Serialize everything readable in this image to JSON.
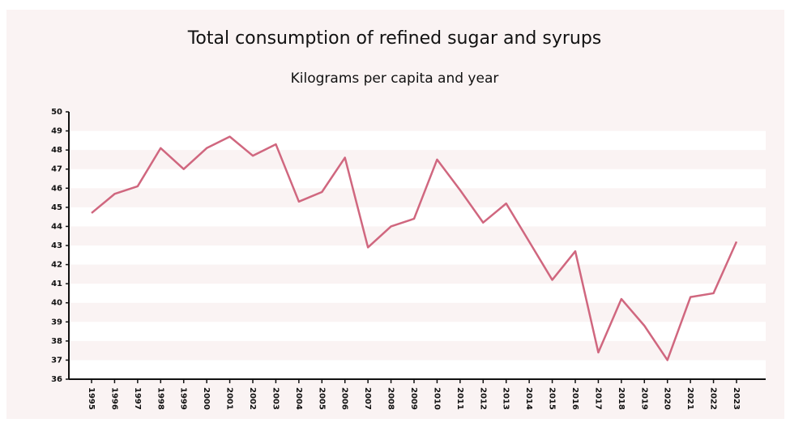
{
  "chart_data": {
    "type": "line",
    "title": "Total consumption of refined sugar and syrups",
    "subtitle": "Kilograms per capita and year",
    "categories": [
      "1995",
      "1996",
      "1997",
      "1998",
      "1999",
      "2000",
      "2001",
      "2002",
      "2003",
      "2004",
      "2005",
      "2006",
      "2007",
      "2008",
      "2009",
      "2010",
      "2011",
      "2012",
      "2013",
      "2014",
      "2015",
      "2016",
      "2017",
      "2018",
      "2019",
      "2020",
      "2021",
      "2022",
      "2023"
    ],
    "series": [
      {
        "color": "#d0677f",
        "values": [
          44.7,
          45.7,
          46.1,
          48.1,
          47.0,
          48.1,
          48.7,
          47.7,
          48.3,
          45.3,
          45.8,
          47.6,
          42.9,
          44.0,
          44.4,
          47.5,
          45.9,
          44.2,
          45.2,
          43.2,
          41.2,
          42.7,
          37.4,
          40.2,
          38.8,
          37.0,
          40.3,
          40.5,
          43.2
        ]
      }
    ],
    "ylim": [
      36,
      50
    ],
    "yticks": [
      36,
      37,
      38,
      39,
      40,
      41,
      42,
      43,
      44,
      45,
      46,
      47,
      48,
      49,
      50
    ],
    "grid": "bands"
  }
}
